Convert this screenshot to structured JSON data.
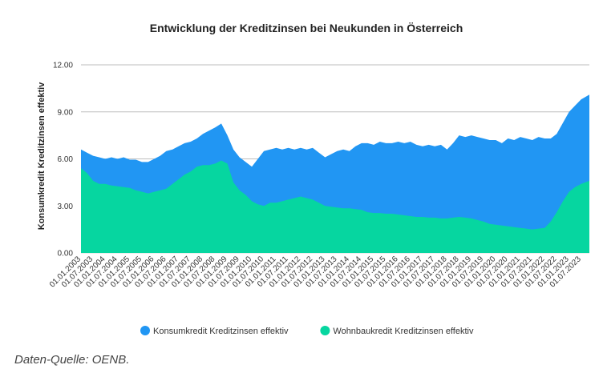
{
  "chart_data": {
    "type": "area",
    "title": "Entwicklung der Kreditzinsen bei Neukunden in Österreich",
    "xlabel": "",
    "ylabel": "Konsumkredit Kreditzinsen effektiv",
    "ylim": [
      0,
      12
    ],
    "yticks": [
      "0.00",
      "3.00",
      "6.00",
      "9.00",
      "12.00"
    ],
    "grid": true,
    "legend_position": "bottom",
    "xlim": [
      "2003-01-01",
      "2023-11-01"
    ],
    "x_tick_labels": [
      "01.01.2003",
      "01.07.2003",
      "01.01.2004",
      "01.07.2004",
      "01.01.2005",
      "01.07.2005",
      "01.01.2006",
      "01.07.2006",
      "01.01.2007",
      "01.07.2007",
      "01.01.2008",
      "01.07.2008",
      "01.01.2009",
      "01.07.2009",
      "01.01.2010",
      "01.07.2010",
      "01.01.2011",
      "01.07.2011",
      "01.01.2012",
      "01.07.2012",
      "01.01.2013",
      "01.07.2013",
      "01.01.2014",
      "01.07.2014",
      "01.01.2015",
      "01.07.2015",
      "01.01.2016",
      "01.07.2016",
      "01.01.2017",
      "01.07.2017",
      "01.01.2018",
      "01.07.2018",
      "01.01.2019",
      "01.07.2019",
      "01.01.2020",
      "01.07.2020",
      "01.01.2021",
      "01.07.2021",
      "01.01.2022",
      "01.07.2022",
      "01.01.2023",
      "01.07.2023"
    ],
    "series": [
      {
        "name": "Konsumkredit Kreditzinsen effektiv",
        "color": "#2196f3",
        "points": [
          [
            "2003-01-01",
            6.6
          ],
          [
            "2003-04-01",
            6.4
          ],
          [
            "2003-07-01",
            6.2
          ],
          [
            "2003-10-01",
            6.1
          ],
          [
            "2004-01-01",
            6.0
          ],
          [
            "2004-04-01",
            6.1
          ],
          [
            "2004-07-01",
            6.0
          ],
          [
            "2004-10-01",
            6.1
          ],
          [
            "2005-01-01",
            5.95
          ],
          [
            "2005-04-01",
            5.95
          ],
          [
            "2005-07-01",
            5.8
          ],
          [
            "2005-10-01",
            5.8
          ],
          [
            "2006-01-01",
            6.0
          ],
          [
            "2006-04-01",
            6.2
          ],
          [
            "2006-07-01",
            6.5
          ],
          [
            "2006-10-01",
            6.6
          ],
          [
            "2007-01-01",
            6.8
          ],
          [
            "2007-04-01",
            7.0
          ],
          [
            "2007-07-01",
            7.1
          ],
          [
            "2007-10-01",
            7.3
          ],
          [
            "2008-01-01",
            7.6
          ],
          [
            "2008-04-01",
            7.8
          ],
          [
            "2008-07-01",
            8.0
          ],
          [
            "2008-10-01",
            8.25
          ],
          [
            "2009-01-01",
            7.5
          ],
          [
            "2009-04-01",
            6.6
          ],
          [
            "2009-07-01",
            6.1
          ],
          [
            "2009-10-01",
            5.8
          ],
          [
            "2010-01-01",
            5.5
          ],
          [
            "2010-04-01",
            6.0
          ],
          [
            "2010-07-01",
            6.5
          ],
          [
            "2010-10-01",
            6.6
          ],
          [
            "2011-01-01",
            6.7
          ],
          [
            "2011-04-01",
            6.6
          ],
          [
            "2011-07-01",
            6.7
          ],
          [
            "2011-10-01",
            6.6
          ],
          [
            "2012-01-01",
            6.7
          ],
          [
            "2012-04-01",
            6.6
          ],
          [
            "2012-07-01",
            6.7
          ],
          [
            "2012-10-01",
            6.4
          ],
          [
            "2013-01-01",
            6.1
          ],
          [
            "2013-04-01",
            6.3
          ],
          [
            "2013-07-01",
            6.5
          ],
          [
            "2013-10-01",
            6.6
          ],
          [
            "2014-01-01",
            6.5
          ],
          [
            "2014-04-01",
            6.8
          ],
          [
            "2014-07-01",
            7.0
          ],
          [
            "2014-10-01",
            7.0
          ],
          [
            "2015-01-01",
            6.9
          ],
          [
            "2015-04-01",
            7.1
          ],
          [
            "2015-07-01",
            7.0
          ],
          [
            "2015-10-01",
            7.0
          ],
          [
            "2016-01-01",
            7.1
          ],
          [
            "2016-04-01",
            7.0
          ],
          [
            "2016-07-01",
            7.1
          ],
          [
            "2016-10-01",
            6.9
          ],
          [
            "2017-01-01",
            6.8
          ],
          [
            "2017-04-01",
            6.9
          ],
          [
            "2017-07-01",
            6.8
          ],
          [
            "2017-10-01",
            6.9
          ],
          [
            "2018-01-01",
            6.6
          ],
          [
            "2018-04-01",
            7.0
          ],
          [
            "2018-07-01",
            7.5
          ],
          [
            "2018-10-01",
            7.4
          ],
          [
            "2019-01-01",
            7.5
          ],
          [
            "2019-04-01",
            7.4
          ],
          [
            "2019-07-01",
            7.3
          ],
          [
            "2019-10-01",
            7.2
          ],
          [
            "2020-01-01",
            7.2
          ],
          [
            "2020-04-01",
            7.0
          ],
          [
            "2020-07-01",
            7.3
          ],
          [
            "2020-10-01",
            7.2
          ],
          [
            "2021-01-01",
            7.4
          ],
          [
            "2021-04-01",
            7.3
          ],
          [
            "2021-07-01",
            7.2
          ],
          [
            "2021-10-01",
            7.4
          ],
          [
            "2022-01-01",
            7.3
          ],
          [
            "2022-04-01",
            7.3
          ],
          [
            "2022-07-01",
            7.6
          ],
          [
            "2022-10-01",
            8.3
          ],
          [
            "2023-01-01",
            9.0
          ],
          [
            "2023-04-01",
            9.4
          ],
          [
            "2023-07-01",
            9.8
          ],
          [
            "2023-11-01",
            10.1
          ]
        ]
      },
      {
        "name": "Wohnbaukredit Kreditzinsen effektiv",
        "color": "#06d6a0",
        "points": [
          [
            "2003-01-01",
            5.4
          ],
          [
            "2003-04-01",
            5.1
          ],
          [
            "2003-07-01",
            4.6
          ],
          [
            "2003-10-01",
            4.4
          ],
          [
            "2004-01-01",
            4.4
          ],
          [
            "2004-04-01",
            4.3
          ],
          [
            "2004-07-01",
            4.25
          ],
          [
            "2004-10-01",
            4.2
          ],
          [
            "2005-01-01",
            4.15
          ],
          [
            "2005-04-01",
            4.0
          ],
          [
            "2005-07-01",
            3.9
          ],
          [
            "2005-10-01",
            3.8
          ],
          [
            "2006-01-01",
            3.9
          ],
          [
            "2006-04-01",
            4.0
          ],
          [
            "2006-07-01",
            4.1
          ],
          [
            "2006-10-01",
            4.4
          ],
          [
            "2007-01-01",
            4.7
          ],
          [
            "2007-04-01",
            5.0
          ],
          [
            "2007-07-01",
            5.2
          ],
          [
            "2007-10-01",
            5.5
          ],
          [
            "2008-01-01",
            5.6
          ],
          [
            "2008-04-01",
            5.6
          ],
          [
            "2008-07-01",
            5.7
          ],
          [
            "2008-10-01",
            5.9
          ],
          [
            "2009-01-01",
            5.7
          ],
          [
            "2009-04-01",
            4.5
          ],
          [
            "2009-07-01",
            4.0
          ],
          [
            "2009-10-01",
            3.7
          ],
          [
            "2010-01-01",
            3.3
          ],
          [
            "2010-04-01",
            3.1
          ],
          [
            "2010-07-01",
            3.0
          ],
          [
            "2010-10-01",
            3.2
          ],
          [
            "2011-01-01",
            3.2
          ],
          [
            "2011-04-01",
            3.3
          ],
          [
            "2011-07-01",
            3.4
          ],
          [
            "2011-10-01",
            3.5
          ],
          [
            "2012-01-01",
            3.6
          ],
          [
            "2012-04-01",
            3.5
          ],
          [
            "2012-07-01",
            3.4
          ],
          [
            "2012-10-01",
            3.2
          ],
          [
            "2013-01-01",
            3.0
          ],
          [
            "2013-04-01",
            2.95
          ],
          [
            "2013-07-01",
            2.9
          ],
          [
            "2013-10-01",
            2.85
          ],
          [
            "2014-01-01",
            2.85
          ],
          [
            "2014-04-01",
            2.8
          ],
          [
            "2014-07-01",
            2.75
          ],
          [
            "2014-10-01",
            2.6
          ],
          [
            "2015-01-01",
            2.55
          ],
          [
            "2015-04-01",
            2.55
          ],
          [
            "2015-07-01",
            2.5
          ],
          [
            "2015-10-01",
            2.5
          ],
          [
            "2016-01-01",
            2.45
          ],
          [
            "2016-04-01",
            2.4
          ],
          [
            "2016-07-01",
            2.35
          ],
          [
            "2016-10-01",
            2.3
          ],
          [
            "2017-01-01",
            2.3
          ],
          [
            "2017-04-01",
            2.25
          ],
          [
            "2017-07-01",
            2.25
          ],
          [
            "2017-10-01",
            2.2
          ],
          [
            "2018-01-01",
            2.2
          ],
          [
            "2018-04-01",
            2.25
          ],
          [
            "2018-07-01",
            2.3
          ],
          [
            "2018-10-01",
            2.25
          ],
          [
            "2019-01-01",
            2.2
          ],
          [
            "2019-04-01",
            2.1
          ],
          [
            "2019-07-01",
            2.0
          ],
          [
            "2019-10-01",
            1.85
          ],
          [
            "2020-01-01",
            1.8
          ],
          [
            "2020-04-01",
            1.75
          ],
          [
            "2020-07-01",
            1.7
          ],
          [
            "2020-10-01",
            1.65
          ],
          [
            "2021-01-01",
            1.6
          ],
          [
            "2021-04-01",
            1.55
          ],
          [
            "2021-07-01",
            1.5
          ],
          [
            "2021-10-01",
            1.55
          ],
          [
            "2022-01-01",
            1.6
          ],
          [
            "2022-04-01",
            2.0
          ],
          [
            "2022-07-01",
            2.6
          ],
          [
            "2022-10-01",
            3.3
          ],
          [
            "2023-01-01",
            3.9
          ],
          [
            "2023-04-01",
            4.2
          ],
          [
            "2023-07-01",
            4.4
          ],
          [
            "2023-11-01",
            4.6
          ]
        ]
      }
    ]
  },
  "footer": {
    "source": "Daten-Quelle: OENB."
  }
}
